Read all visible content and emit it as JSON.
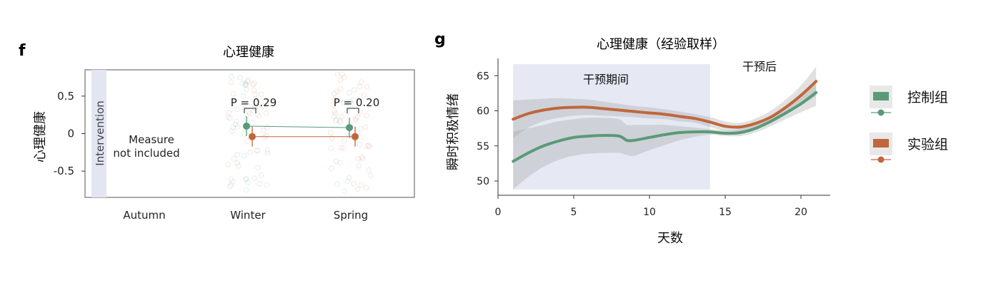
{
  "figure": {
    "panel_f_label": "f",
    "panel_g_label": "g"
  },
  "chart_data": [
    {
      "type": "scatter",
      "title": "心理健康",
      "ylabel": "心理健康",
      "xlabel": "",
      "categories": [
        "Autumn",
        "Winter",
        "Spring"
      ],
      "ylim": [
        -0.85,
        0.85
      ],
      "yticks": [
        0.5,
        0,
        -0.5
      ],
      "ytick_labels": [
        "0.5",
        "0",
        "-0.5"
      ],
      "intervention_label": "Intervention",
      "not_included_label": [
        "Measure",
        "not included"
      ],
      "p_values": [
        {
          "category": "Winter",
          "label": "P = 0.29"
        },
        {
          "category": "Spring",
          "label": "P = 0.20"
        }
      ],
      "series": [
        {
          "name": "控制组",
          "color": "#5a9a78",
          "points": [
            {
              "category": "Winter",
              "value": 0.1
            },
            {
              "category": "Spring",
              "value": 0.08
            }
          ]
        },
        {
          "name": "实验组",
          "color": "#c0663c",
          "points": [
            {
              "category": "Winter",
              "value": -0.04
            },
            {
              "category": "Spring",
              "value": -0.04
            }
          ]
        }
      ],
      "grid": false
    },
    {
      "type": "line",
      "title": "心理健康（经验取样）",
      "xlabel": "天数",
      "ylabel": "瞬时积极情绪",
      "xlim": [
        0,
        22
      ],
      "ylim": [
        48,
        67
      ],
      "xticks": [
        0,
        5,
        10,
        15,
        20
      ],
      "yticks": [
        50,
        55,
        60,
        65
      ],
      "shaded_region": {
        "label": "干预期间",
        "x": [
          1,
          14
        ]
      },
      "post_label": "干预后",
      "series": [
        {
          "name": "控制组",
          "color": "#5a9a78",
          "x": [
            1,
            2,
            3,
            4,
            5,
            6,
            7,
            8,
            8.5,
            9,
            10,
            11,
            12,
            13,
            14,
            15,
            16,
            17,
            18,
            19,
            20,
            21
          ],
          "y": [
            52.8,
            54.0,
            55.0,
            55.7,
            56.2,
            56.4,
            56.5,
            56.4,
            55.8,
            55.8,
            56.2,
            56.6,
            56.9,
            57.0,
            57.0,
            56.8,
            56.9,
            57.5,
            58.5,
            59.7,
            61.0,
            62.6
          ],
          "band_upper": [
            57.0,
            57.5,
            58.0,
            58.5,
            58.8,
            59.0,
            59.0,
            58.8,
            58.0,
            58.0,
            58.0,
            58.0,
            57.8,
            57.6,
            57.4,
            57.2,
            57.4,
            58.1,
            59.2,
            60.6,
            62.2,
            64.5
          ],
          "band_lower": [
            48.8,
            50.6,
            52.0,
            53.0,
            53.6,
            53.9,
            54.0,
            54.0,
            53.7,
            53.6,
            54.4,
            55.1,
            55.8,
            56.3,
            56.6,
            56.4,
            56.4,
            56.9,
            57.8,
            58.8,
            59.8,
            60.7
          ]
        },
        {
          "name": "实验组",
          "color": "#c0663c",
          "x": [
            1,
            2,
            3,
            4,
            5,
            6,
            7,
            8,
            9,
            10,
            11,
            12,
            13,
            14,
            15,
            16,
            17,
            18,
            19,
            20,
            21
          ],
          "y": [
            58.8,
            59.6,
            60.1,
            60.4,
            60.5,
            60.5,
            60.3,
            60.1,
            59.9,
            59.7,
            59.5,
            59.2,
            58.9,
            58.4,
            57.8,
            57.7,
            58.2,
            59.1,
            60.5,
            62.2,
            64.2
          ],
          "band_upper": [
            61.5,
            61.6,
            61.7,
            61.8,
            61.7,
            61.6,
            61.3,
            61.0,
            60.7,
            60.5,
            60.2,
            59.9,
            59.5,
            59.1,
            58.5,
            58.3,
            58.9,
            60.0,
            61.6,
            63.6,
            66.3
          ],
          "band_lower": [
            56.1,
            57.6,
            58.5,
            59.0,
            59.3,
            59.4,
            59.3,
            59.2,
            59.1,
            58.9,
            58.8,
            58.5,
            58.3,
            57.7,
            57.1,
            57.1,
            57.5,
            58.2,
            59.4,
            60.8,
            62.1
          ]
        }
      ],
      "legend": {
        "placement": "right",
        "items": [
          {
            "label": "控制组",
            "color": "#5a9a78"
          },
          {
            "label": "实验组",
            "color": "#c0663c"
          }
        ]
      },
      "grid": false
    }
  ]
}
